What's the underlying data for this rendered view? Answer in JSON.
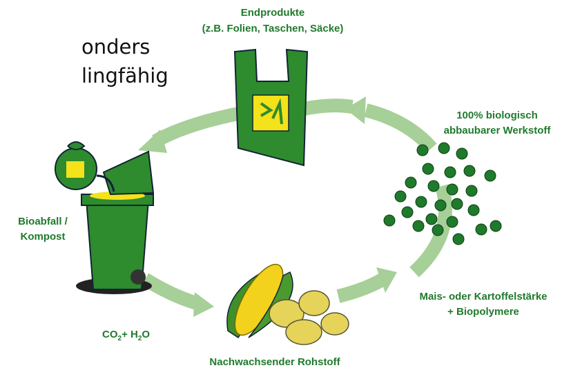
{
  "side_text": [
    "onders",
    "lingfähig"
  ],
  "labels": {
    "end_products": [
      "Endprodukte",
      "(z.B. Folien, Taschen, Säcke)"
    ],
    "material": [
      "100% biologisch",
      "abbaubarer Werkstoff"
    ],
    "biowaste": [
      "Bioabfall /",
      "Kompost"
    ],
    "starch": [
      "Mais- oder Kartoffelstärke",
      "+ Biopolymere"
    ],
    "co2_h2o": [
      "CO",
      "2",
      "+ H",
      "2",
      "O"
    ],
    "raw_material": [
      "Nachwachsender Rohstoff"
    ]
  }
}
